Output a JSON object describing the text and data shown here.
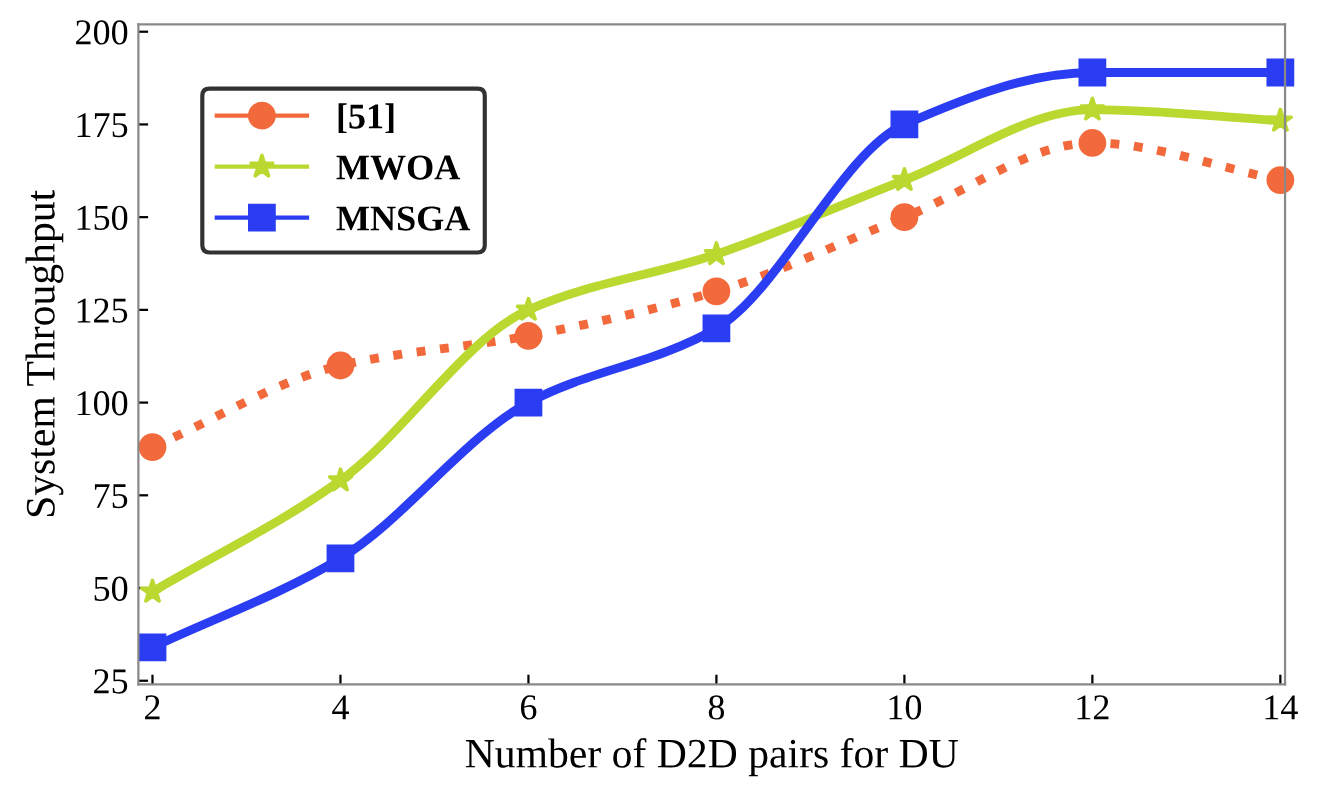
{
  "chart_data": {
    "type": "line",
    "xlabel": "Number of D2D pairs for DU",
    "ylabel": "System Throughput",
    "x": [
      2,
      4,
      6,
      8,
      10,
      12,
      14
    ],
    "series": [
      {
        "name": "[51]",
        "color": "#f26a3c",
        "marker": "circle",
        "line_style": "dotted",
        "values": [
          88,
          110,
          118,
          130,
          150,
          170,
          160
        ]
      },
      {
        "name": "MWOA",
        "color": "#b9d830",
        "marker": "star",
        "line_style": "solid",
        "values": [
          49,
          79,
          125,
          140,
          160,
          179,
          176
        ]
      },
      {
        "name": "MNSGA",
        "color": "#2a3df2",
        "marker": "square",
        "line_style": "solid",
        "values": [
          34,
          58,
          100,
          120,
          175,
          189,
          189
        ]
      }
    ],
    "xlim": [
      1.85,
      14.05
    ],
    "ylim": [
      24,
      202
    ],
    "xticks": [
      2,
      4,
      6,
      8,
      10,
      12,
      14
    ],
    "yticks": [
      25,
      50,
      75,
      100,
      125,
      150,
      175,
      200
    ],
    "grid": false,
    "legend": "top left"
  }
}
